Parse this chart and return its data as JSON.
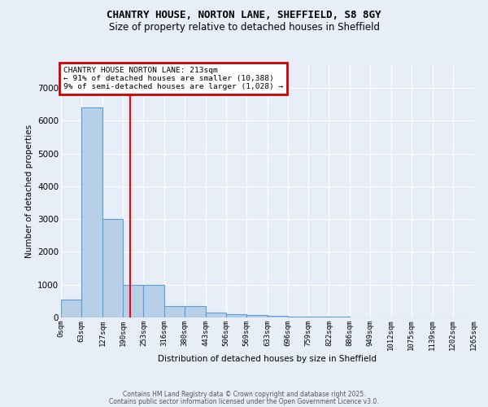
{
  "title1": "CHANTRY HOUSE, NORTON LANE, SHEFFIELD, S8 8GY",
  "title2": "Size of property relative to detached houses in Sheffield",
  "xlabel": "Distribution of detached houses by size in Sheffield",
  "ylabel": "Number of detached properties",
  "bin_edges": [
    0,
    63,
    127,
    190,
    253,
    316,
    380,
    443,
    506,
    569,
    633,
    696,
    759,
    822,
    886,
    949,
    1012,
    1075,
    1139,
    1202,
    1265
  ],
  "bar_heights": [
    550,
    6400,
    3000,
    1000,
    1000,
    350,
    350,
    150,
    100,
    75,
    50,
    30,
    20,
    15,
    10,
    7,
    5,
    3,
    2,
    1
  ],
  "bar_color": "#b8cfe8",
  "bar_edge_color": "#5a9fd4",
  "background_color": "#e8eef7",
  "grid_color": "#ffffff",
  "red_line_x": 213,
  "annotation_title": "CHANTRY HOUSE NORTON LANE: 213sqm",
  "annotation_line2": "← 91% of detached houses are smaller (10,388)",
  "annotation_line3": "9% of semi-detached houses are larger (1,028) →",
  "annotation_box_color": "#cc0000",
  "footer1": "Contains HM Land Registry data © Crown copyright and database right 2025.",
  "footer2": "Contains public sector information licensed under the Open Government Licence v3.0.",
  "ylim": [
    0,
    7700
  ],
  "yticks": [
    0,
    1000,
    2000,
    3000,
    4000,
    5000,
    6000,
    7000
  ],
  "tick_labels": [
    "0sqm",
    "63sqm",
    "127sqm",
    "190sqm",
    "253sqm",
    "316sqm",
    "380sqm",
    "443sqm",
    "506sqm",
    "569sqm",
    "633sqm",
    "696sqm",
    "759sqm",
    "822sqm",
    "886sqm",
    "949sqm",
    "1012sqm",
    "1075sqm",
    "1139sqm",
    "1202sqm",
    "1265sqm"
  ]
}
